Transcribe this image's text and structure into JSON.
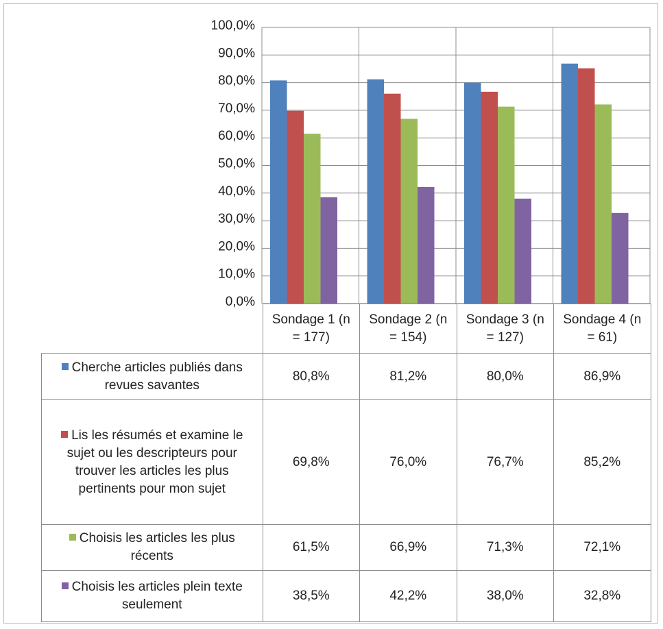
{
  "chart_data": {
    "type": "bar",
    "categories": [
      "Sondage 1 (n = 177)",
      "Sondage 2 (n = 154)",
      "Sondage 3 (n = 127)",
      "Sondage 4 (n = 61)"
    ],
    "series": [
      {
        "name": "Cherche articles publiés dans revues savantes",
        "color": "#4f81bd",
        "values": [
          80.8,
          81.2,
          80.0,
          86.9
        ],
        "value_labels": [
          "80,8%",
          "81,2%",
          "80,0%",
          "86,9%"
        ]
      },
      {
        "name": "Lis les résumés et examine le sujet ou les descripteurs pour trouver les articles les plus pertinents pour mon sujet",
        "color": "#c0504d",
        "values": [
          69.8,
          76.0,
          76.7,
          85.2
        ],
        "value_labels": [
          "69,8%",
          "76,0%",
          "76,7%",
          "85,2%"
        ]
      },
      {
        "name": "Choisis les articles les plus récents",
        "color": "#9bbb59",
        "values": [
          61.5,
          66.9,
          71.3,
          72.1
        ],
        "value_labels": [
          "61,5%",
          "66,9%",
          "71,3%",
          "72,1%"
        ]
      },
      {
        "name": "Choisis les articles plein texte seulement",
        "color": "#8064a2",
        "values": [
          38.5,
          42.2,
          38.0,
          32.8
        ],
        "value_labels": [
          "38,5%",
          "42,2%",
          "38,0%",
          "32,8%"
        ]
      }
    ],
    "ylim": [
      0,
      100
    ],
    "yticks": [
      {
        "value": 0,
        "label": "0,0%"
      },
      {
        "value": 10,
        "label": "10,0%"
      },
      {
        "value": 20,
        "label": "20,0%"
      },
      {
        "value": 30,
        "label": "30,0%"
      },
      {
        "value": 40,
        "label": "40,0%"
      },
      {
        "value": 50,
        "label": "50,0%"
      },
      {
        "value": 60,
        "label": "60,0%"
      },
      {
        "value": 70,
        "label": "70,0%"
      },
      {
        "value": 80,
        "label": "80,0%"
      },
      {
        "value": 90,
        "label": "90,0%"
      },
      {
        "value": 100,
        "label": "100,0%"
      }
    ],
    "grid": true
  }
}
